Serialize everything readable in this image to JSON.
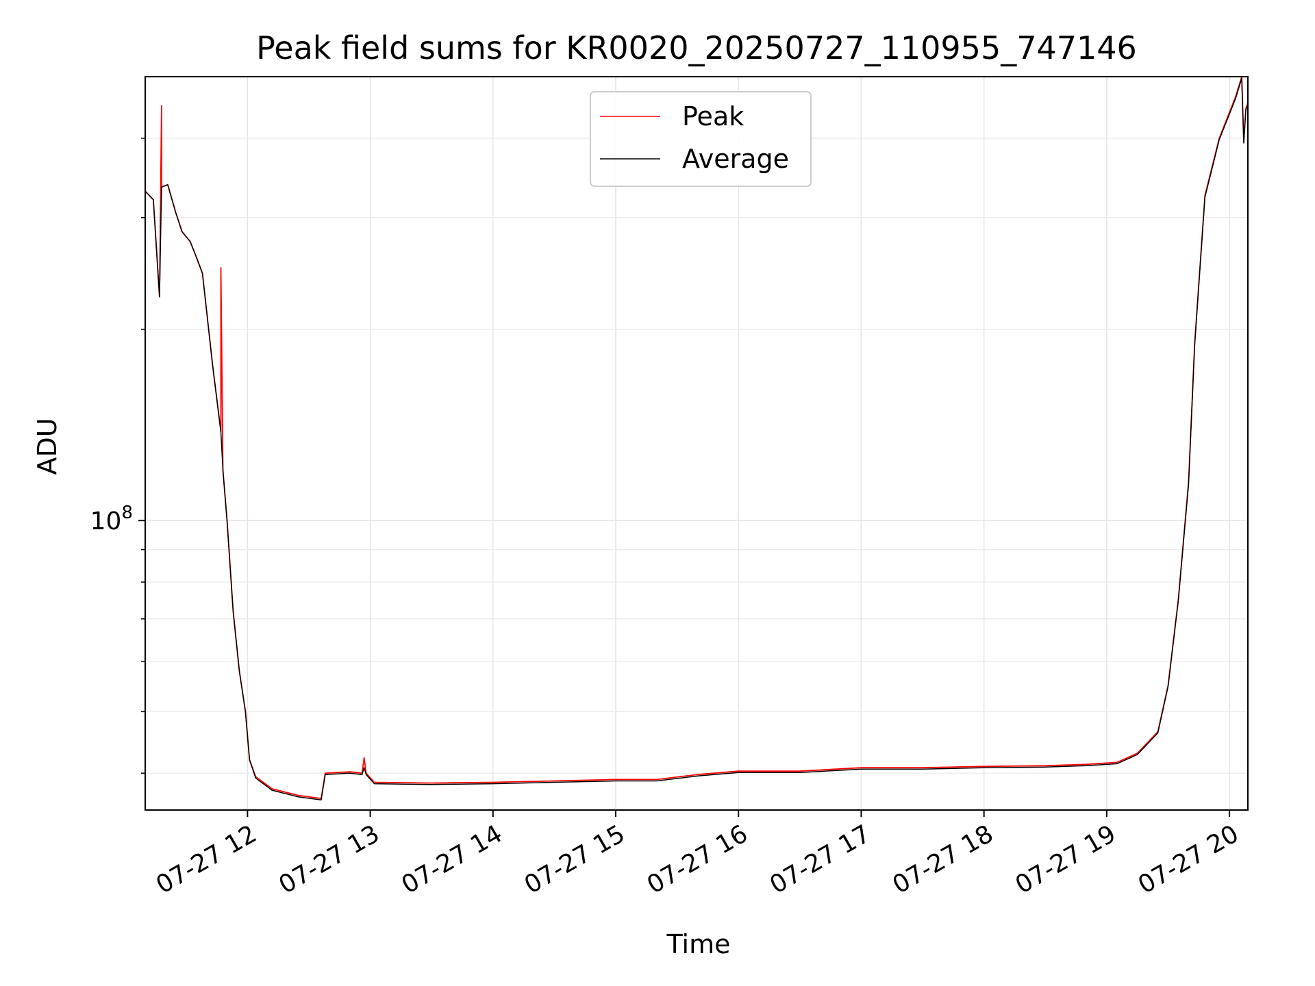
{
  "chart_data": {
    "type": "line",
    "title": "Peak field sums for KR0020_20250727_110955_747146",
    "xlabel": "Time",
    "ylabel": "ADU",
    "y_scale": "log",
    "ylim": [
      35000000,
      500000000
    ],
    "xlim": [
      "2025-07-27 11:10",
      "2025-07-27 20:09"
    ],
    "grid": true,
    "legend_position": "top-center",
    "x_ticks": [
      {
        "label": "07-27 12",
        "value": "2025-07-27 12:00"
      },
      {
        "label": "07-27 13",
        "value": "2025-07-27 13:00"
      },
      {
        "label": "07-27 14",
        "value": "2025-07-27 14:00"
      },
      {
        "label": "07-27 15",
        "value": "2025-07-27 15:00"
      },
      {
        "label": "07-27 16",
        "value": "2025-07-27 16:00"
      },
      {
        "label": "07-27 17",
        "value": "2025-07-27 17:00"
      },
      {
        "label": "07-27 18",
        "value": "2025-07-27 18:00"
      },
      {
        "label": "07-27 19",
        "value": "2025-07-27 19:00"
      },
      {
        "label": "07-27 20",
        "value": "2025-07-27 20:00"
      }
    ],
    "y_ticks": [
      {
        "label_base": "10",
        "label_exp": "8",
        "value": 100000000
      }
    ],
    "y_minor_ticks": [
      40000000,
      50000000,
      60000000,
      70000000,
      80000000,
      90000000,
      200000000,
      300000000,
      400000000
    ],
    "series": [
      {
        "name": "Peak",
        "color": "#ff0000",
        "points": [
          [
            "2025-07-27 11:10",
            330000000
          ],
          [
            "2025-07-27 11:14",
            320000000
          ],
          [
            "2025-07-27 11:17",
            225000000
          ],
          [
            "2025-07-27 11:18",
            450000000
          ],
          [
            "2025-07-27 11:18",
            335000000
          ],
          [
            "2025-07-27 11:21",
            338000000
          ],
          [
            "2025-07-27 11:25",
            305000000
          ],
          [
            "2025-07-27 11:28",
            285000000
          ],
          [
            "2025-07-27 11:32",
            275000000
          ],
          [
            "2025-07-27 11:35",
            260000000
          ],
          [
            "2025-07-27 11:38",
            245000000
          ],
          [
            "2025-07-27 11:43",
            175000000
          ],
          [
            "2025-07-27 11:47",
            138000000
          ],
          [
            "2025-07-27 11:47",
            250000000
          ],
          [
            "2025-07-27 11:48",
            120000000
          ],
          [
            "2025-07-27 11:50",
            100000000
          ],
          [
            "2025-07-27 11:53",
            72000000
          ],
          [
            "2025-07-27 11:56",
            58000000
          ],
          [
            "2025-07-27 11:59",
            50000000
          ],
          [
            "2025-07-27 12:01",
            42000000
          ],
          [
            "2025-07-27 12:04",
            39500000
          ],
          [
            "2025-07-27 12:12",
            37800000
          ],
          [
            "2025-07-27 12:25",
            36900000
          ],
          [
            "2025-07-27 12:36",
            36500000
          ],
          [
            "2025-07-27 12:38",
            40000000
          ],
          [
            "2025-07-27 12:50",
            40200000
          ],
          [
            "2025-07-27 12:56",
            40000000
          ],
          [
            "2025-07-27 12:57",
            42300000
          ],
          [
            "2025-07-27 12:58",
            40000000
          ],
          [
            "2025-07-27 13:02",
            38700000
          ],
          [
            "2025-07-27 13:30",
            38600000
          ],
          [
            "2025-07-27 14:00",
            38700000
          ],
          [
            "2025-07-27 14:30",
            38900000
          ],
          [
            "2025-07-27 15:00",
            39100000
          ],
          [
            "2025-07-27 15:20",
            39100000
          ],
          [
            "2025-07-27 15:40",
            39800000
          ],
          [
            "2025-07-27 16:00",
            40300000
          ],
          [
            "2025-07-27 16:30",
            40300000
          ],
          [
            "2025-07-27 17:00",
            40800000
          ],
          [
            "2025-07-27 17:30",
            40800000
          ],
          [
            "2025-07-27 18:00",
            41000000
          ],
          [
            "2025-07-27 18:30",
            41100000
          ],
          [
            "2025-07-27 18:50",
            41300000
          ],
          [
            "2025-07-27 19:05",
            41600000
          ],
          [
            "2025-07-27 19:15",
            43000000
          ],
          [
            "2025-07-27 19:25",
            46500000
          ],
          [
            "2025-07-27 19:30",
            55000000
          ],
          [
            "2025-07-27 19:35",
            75000000
          ],
          [
            "2025-07-27 19:40",
            115000000
          ],
          [
            "2025-07-27 19:43",
            190000000
          ],
          [
            "2025-07-27 19:48",
            325000000
          ],
          [
            "2025-07-27 19:55",
            400000000
          ],
          [
            "2025-07-27 20:03",
            465000000
          ],
          [
            "2025-07-27 20:06",
            500000000
          ],
          [
            "2025-07-27 20:07",
            395000000
          ],
          [
            "2025-07-27 20:08",
            445000000
          ],
          [
            "2025-07-27 20:09",
            455000000
          ]
        ]
      },
      {
        "name": "Average",
        "color": "#000000",
        "points": [
          [
            "2025-07-27 11:10",
            330000000
          ],
          [
            "2025-07-27 11:14",
            320000000
          ],
          [
            "2025-07-27 11:17",
            225000000
          ],
          [
            "2025-07-27 11:18",
            335000000
          ],
          [
            "2025-07-27 11:21",
            338000000
          ],
          [
            "2025-07-27 11:25",
            305000000
          ],
          [
            "2025-07-27 11:28",
            285000000
          ],
          [
            "2025-07-27 11:32",
            275000000
          ],
          [
            "2025-07-27 11:35",
            260000000
          ],
          [
            "2025-07-27 11:38",
            245000000
          ],
          [
            "2025-07-27 11:43",
            175000000
          ],
          [
            "2025-07-27 11:47",
            138000000
          ],
          [
            "2025-07-27 11:48",
            120000000
          ],
          [
            "2025-07-27 11:50",
            100000000
          ],
          [
            "2025-07-27 11:53",
            72000000
          ],
          [
            "2025-07-27 11:56",
            58000000
          ],
          [
            "2025-07-27 11:59",
            50000000
          ],
          [
            "2025-07-27 12:01",
            42000000
          ],
          [
            "2025-07-27 12:04",
            39300000
          ],
          [
            "2025-07-27 12:12",
            37600000
          ],
          [
            "2025-07-27 12:25",
            36700000
          ],
          [
            "2025-07-27 12:36",
            36300000
          ],
          [
            "2025-07-27 12:38",
            39800000
          ],
          [
            "2025-07-27 12:50",
            40000000
          ],
          [
            "2025-07-27 12:56",
            39800000
          ],
          [
            "2025-07-27 12:57",
            40800000
          ],
          [
            "2025-07-27 12:58",
            39800000
          ],
          [
            "2025-07-27 13:02",
            38500000
          ],
          [
            "2025-07-27 13:30",
            38400000
          ],
          [
            "2025-07-27 14:00",
            38500000
          ],
          [
            "2025-07-27 14:30",
            38700000
          ],
          [
            "2025-07-27 15:00",
            38900000
          ],
          [
            "2025-07-27 15:20",
            38900000
          ],
          [
            "2025-07-27 15:40",
            39600000
          ],
          [
            "2025-07-27 16:00",
            40100000
          ],
          [
            "2025-07-27 16:30",
            40100000
          ],
          [
            "2025-07-27 17:00",
            40600000
          ],
          [
            "2025-07-27 17:30",
            40600000
          ],
          [
            "2025-07-27 18:00",
            40800000
          ],
          [
            "2025-07-27 18:30",
            40900000
          ],
          [
            "2025-07-27 18:50",
            41100000
          ],
          [
            "2025-07-27 19:05",
            41400000
          ],
          [
            "2025-07-27 19:15",
            42800000
          ],
          [
            "2025-07-27 19:25",
            46300000
          ],
          [
            "2025-07-27 19:30",
            54800000
          ],
          [
            "2025-07-27 19:35",
            74800000
          ],
          [
            "2025-07-27 19:40",
            114000000
          ],
          [
            "2025-07-27 19:43",
            189000000
          ],
          [
            "2025-07-27 19:48",
            323000000
          ],
          [
            "2025-07-27 19:55",
            398000000
          ],
          [
            "2025-07-27 20:03",
            462000000
          ],
          [
            "2025-07-27 20:06",
            497000000
          ],
          [
            "2025-07-27 20:07",
            393000000
          ],
          [
            "2025-07-27 20:08",
            443000000
          ],
          [
            "2025-07-27 20:09",
            452000000
          ]
        ]
      }
    ]
  }
}
